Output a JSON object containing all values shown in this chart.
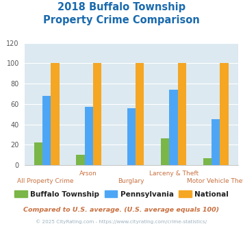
{
  "title": "2018 Buffalo Township\nProperty Crime Comparison",
  "title_color": "#1a6aad",
  "title_fontsize": 10.5,
  "categories": [
    "All Property Crime",
    "Arson",
    "Burglary",
    "Larceny & Theft",
    "Motor Vehicle Theft"
  ],
  "series": {
    "Buffalo Township": [
      22,
      10,
      0,
      26,
      7
    ],
    "Pennsylvania": [
      68,
      57,
      56,
      74,
      45
    ],
    "National": [
      100,
      100,
      100,
      100,
      100
    ]
  },
  "colors": {
    "Buffalo Township": "#7ab648",
    "Pennsylvania": "#4da6f5",
    "National": "#f5a623"
  },
  "ylim": [
    0,
    120
  ],
  "yticks": [
    0,
    20,
    40,
    60,
    80,
    100,
    120
  ],
  "plot_bg_color": "#dce9f0",
  "fig_bg_color": "#ffffff",
  "grid_color": "#ffffff",
  "footnote": "Compared to U.S. average. (U.S. average equals 100)",
  "footnote2": "© 2025 CityRating.com - https://www.cityrating.com/crime-statistics/",
  "footnote_color": "#c87040",
  "footnote2_color": "#9eb3c0",
  "bar_width": 0.2,
  "xlabel_color": "#c87040"
}
